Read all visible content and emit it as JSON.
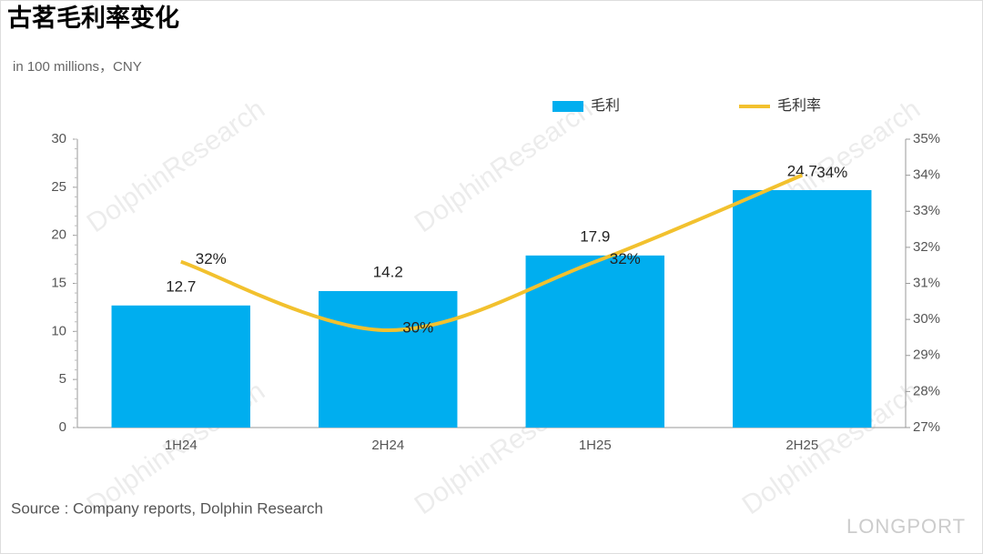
{
  "chart_data": {
    "type": "combo",
    "title": "古茗毛利率变化",
    "subtitle": "in 100 millions，CNY",
    "source": "Source : Company reports, Dolphin Research",
    "watermark": "DolphinResearch",
    "brand": "LONGPORT",
    "categories": [
      "1H24",
      "2H24",
      "1H25",
      "2H25"
    ],
    "series": [
      {
        "name": "毛利",
        "type": "bar",
        "color": "#00aeef",
        "values": [
          12.7,
          14.2,
          17.9,
          24.7
        ]
      },
      {
        "name": "毛利率",
        "type": "line",
        "axis": "y2",
        "color": "#f2c12e",
        "values": [
          31.6,
          29.7,
          31.6,
          34.0
        ],
        "value_labels": [
          "32%",
          "30%",
          "32%",
          "34%"
        ]
      }
    ],
    "ylim": [
      0,
      30
    ],
    "yticks": [
      0,
      5,
      10,
      15,
      20,
      25,
      30
    ],
    "y2lim": [
      27,
      35
    ],
    "y2ticks": [
      {
        "value": 27,
        "label": "27%"
      },
      {
        "value": 28,
        "label": "28%"
      },
      {
        "value": 29,
        "label": "29%"
      },
      {
        "value": 30,
        "label": "30%"
      },
      {
        "value": 31,
        "label": "31%"
      },
      {
        "value": 32,
        "label": "32%"
      },
      {
        "value": 33,
        "label": "33%"
      },
      {
        "value": 34,
        "label": "34%"
      },
      {
        "value": 35,
        "label": "35%"
      }
    ]
  }
}
